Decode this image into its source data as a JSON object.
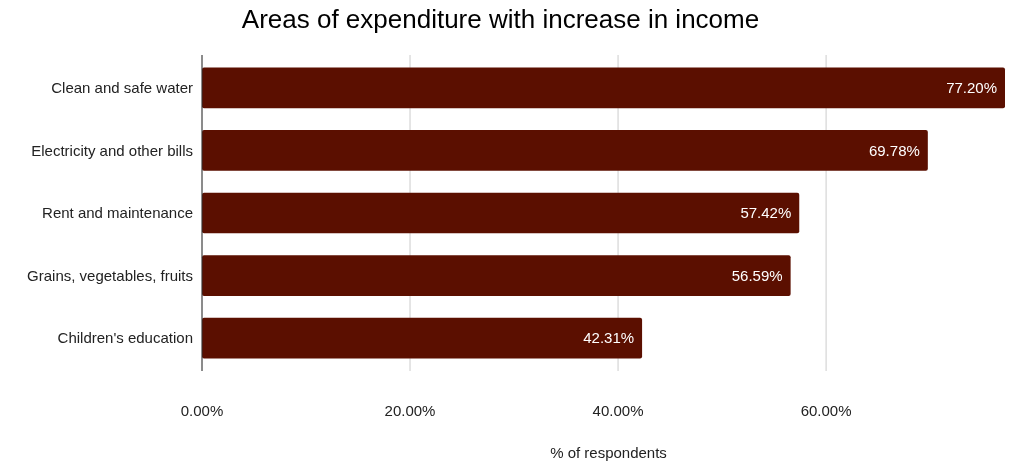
{
  "chart_data": {
    "type": "bar",
    "orientation": "horizontal",
    "title": "Areas of expenditure with increase in income",
    "xlabel": "% of respondents",
    "categories": [
      "Clean and safe water",
      "Electricity and other bills",
      "Rent and maintenance",
      "Grains, vegetables, fruits",
      "Children's education"
    ],
    "values": [
      77.2,
      69.78,
      57.42,
      56.59,
      42.31
    ],
    "value_labels": [
      "77.20%",
      "69.78%",
      "57.42%",
      "56.59%",
      "42.31%"
    ],
    "color": "#5b0f00",
    "xlim": [
      0,
      77.2
    ],
    "xticks": [
      {
        "value": 0,
        "label": "0.00%"
      },
      {
        "value": 20,
        "label": "20.00%"
      },
      {
        "value": 40,
        "label": "40.00%"
      },
      {
        "value": 60,
        "label": "60.00%"
      }
    ],
    "grid": "x"
  }
}
